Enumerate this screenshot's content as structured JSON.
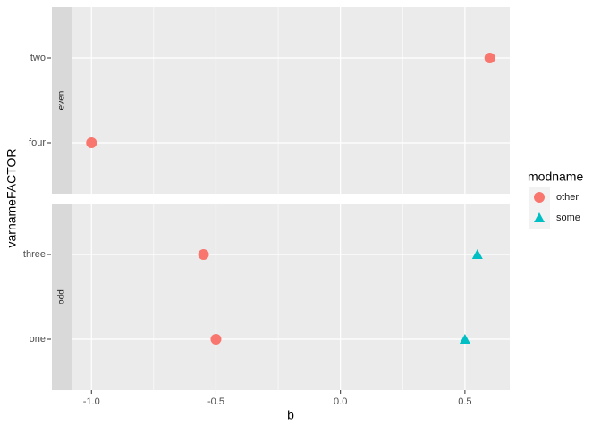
{
  "chart_data": {
    "type": "scatter",
    "x_label": "b",
    "y_label": "varnameFACTOR",
    "xlim": [
      -1.08,
      0.68
    ],
    "xticks": [
      {
        "value": -1.0,
        "label": "-1.0"
      },
      {
        "value": -0.5,
        "label": "-0.5"
      },
      {
        "value": 0.0,
        "label": "0.0"
      },
      {
        "value": 0.5,
        "label": "0.5"
      }
    ],
    "xminor": [
      -0.75,
      -0.25,
      0.25
    ],
    "grid": true,
    "facets": [
      {
        "label": "even",
        "categories": [
          "four",
          "two"
        ]
      },
      {
        "label": "odd",
        "categories": [
          "one",
          "three"
        ]
      }
    ],
    "legend_title": "modname",
    "series": [
      {
        "name": "other",
        "color": "#F8766D",
        "shape": "circle",
        "values": [
          [
            -1.0,
            0.6
          ],
          [
            -0.5,
            -0.55
          ]
        ]
      },
      {
        "name": "some",
        "color": "#00BFC4",
        "shape": "triangle",
        "values": [
          [
            null,
            null
          ],
          [
            0.5,
            0.55
          ]
        ]
      }
    ]
  }
}
